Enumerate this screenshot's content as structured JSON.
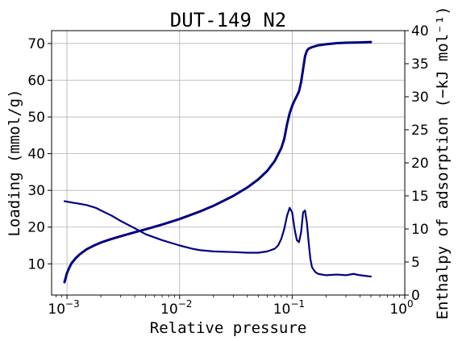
{
  "chart_data": {
    "type": "line",
    "title": "DUT-149 N2",
    "xlabel": "Relative pressure",
    "ylabel_left": "Loading (mmol/g)",
    "ylabel_right": "Enthalpy of adsorption (−kJ mol⁻¹)",
    "x_scale": "log",
    "xlim": [
      0.00073,
      1.0
    ],
    "ylim_left": [
      1.5,
      73.5
    ],
    "ylim_right": [
      0,
      40
    ],
    "grid": true,
    "x_ticks": [
      {
        "value": 0.001,
        "base": "10",
        "exp": "−3"
      },
      {
        "value": 0.01,
        "base": "10",
        "exp": "−2"
      },
      {
        "value": 0.1,
        "base": "10",
        "exp": "−1"
      },
      {
        "value": 1.0,
        "base": "10",
        "exp": "0"
      }
    ],
    "y_ticks_left": [
      10,
      20,
      30,
      40,
      50,
      60,
      70
    ],
    "y_ticks_right": [
      0,
      5,
      10,
      15,
      20,
      25,
      30,
      35,
      40
    ],
    "line_color": "#000080",
    "series": [
      {
        "axis": "left",
        "x": [
          0.00095,
          0.001,
          0.00105,
          0.0011,
          0.0012,
          0.0013,
          0.0015,
          0.0018,
          0.002,
          0.0025,
          0.003,
          0.004,
          0.005,
          0.007,
          0.01,
          0.015,
          0.02,
          0.03,
          0.04,
          0.05,
          0.06,
          0.07,
          0.08,
          0.085,
          0.09,
          0.095,
          0.1,
          0.105,
          0.11,
          0.115,
          0.12,
          0.125,
          0.13,
          0.135,
          0.14,
          0.15,
          0.17,
          0.2,
          0.25,
          0.3,
          0.4,
          0.5
        ],
        "y": [
          5.0,
          7.5,
          9.0,
          10.2,
          11.6,
          12.6,
          14.0,
          15.2,
          15.8,
          16.8,
          17.5,
          18.6,
          19.4,
          20.7,
          22.2,
          24.2,
          25.8,
          28.5,
          30.8,
          33.0,
          35.3,
          38.0,
          41.5,
          44.0,
          48.0,
          51.0,
          53.0,
          54.5,
          55.7,
          57.0,
          59.5,
          63.0,
          66.5,
          68.0,
          68.6,
          69.0,
          69.5,
          69.8,
          70.1,
          70.2,
          70.3,
          70.4
        ]
      },
      {
        "axis": "right",
        "x": [
          0.00095,
          0.0011,
          0.0013,
          0.0015,
          0.0018,
          0.002,
          0.0025,
          0.003,
          0.004,
          0.005,
          0.007,
          0.01,
          0.013,
          0.015,
          0.02,
          0.03,
          0.04,
          0.05,
          0.06,
          0.07,
          0.075,
          0.08,
          0.085,
          0.09,
          0.095,
          0.1,
          0.105,
          0.11,
          0.115,
          0.12,
          0.125,
          0.13,
          0.135,
          0.14,
          0.145,
          0.15,
          0.16,
          0.17,
          0.2,
          0.25,
          0.3,
          0.35,
          0.4,
          0.45,
          0.5
        ],
        "y": [
          14.2,
          14.0,
          13.8,
          13.6,
          13.2,
          12.8,
          12.0,
          11.2,
          10.1,
          9.2,
          8.3,
          7.5,
          7.0,
          6.8,
          6.6,
          6.5,
          6.4,
          6.4,
          6.6,
          7.0,
          7.5,
          8.5,
          10.0,
          12.0,
          13.2,
          12.5,
          10.0,
          8.3,
          8.0,
          9.5,
          12.5,
          12.8,
          11.0,
          8.0,
          5.5,
          4.2,
          3.5,
          3.2,
          3.0,
          3.1,
          3.0,
          3.2,
          3.0,
          2.9,
          2.8
        ]
      }
    ]
  }
}
